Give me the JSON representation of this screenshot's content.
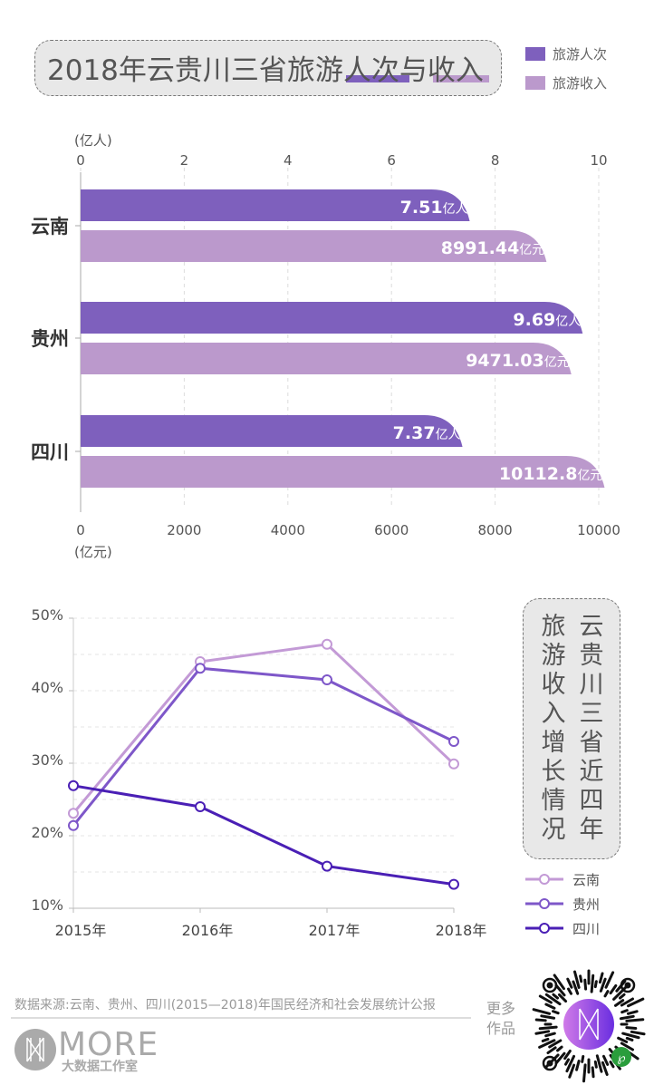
{
  "title": "2018年云贵川三省旅游人次与收入",
  "legend_top": [
    {
      "label": "旅游人次",
      "color": "#7e60bd"
    },
    {
      "label": "旅游收入",
      "color": "#bb99cc"
    }
  ],
  "chart_data": [
    {
      "type": "bar",
      "title": "2018年云贵川三省旅游人次与收入",
      "categories": [
        "云南",
        "贵州",
        "四川"
      ],
      "top_axis": {
        "unit": "(亿人)",
        "ticks": [
          "0",
          "2",
          "4",
          "6",
          "8",
          "10"
        ],
        "range": [
          0,
          10
        ]
      },
      "bottom_axis": {
        "unit": "(亿元)",
        "ticks": [
          "0",
          "2000",
          "4000",
          "6000",
          "8000",
          "10000"
        ],
        "range": [
          0,
          10000
        ]
      },
      "series": [
        {
          "name": "旅游人次",
          "values": [
            7.51,
            9.69,
            7.37
          ],
          "labels": [
            "7.51",
            "9.69",
            "7.37"
          ],
          "unit": "亿人",
          "color": "#7e60bd",
          "axis": "top"
        },
        {
          "name": "旅游收入",
          "values": [
            8991.44,
            9471.03,
            10112.8
          ],
          "labels": [
            "8991.44",
            "9471.03",
            "10112.8"
          ],
          "unit": "亿元",
          "color": "#bb99cc",
          "axis": "bottom"
        }
      ]
    },
    {
      "type": "line",
      "title": "云贵川三省近四年旅游收入增长情况",
      "x": [
        "2015年",
        "2016年",
        "2017年",
        "2018年"
      ],
      "yticks": [
        "10%",
        "20%",
        "30%",
        "40%",
        "50%"
      ],
      "ylim": [
        10,
        50
      ],
      "series": [
        {
          "name": "云南",
          "values": [
            23.1,
            44.0,
            46.4,
            29.9
          ],
          "color": "#c39ad6"
        },
        {
          "name": "贵州",
          "values": [
            21.4,
            43.1,
            41.5,
            33.0
          ],
          "color": "#7e57c9"
        },
        {
          "name": "四川",
          "values": [
            26.9,
            24.0,
            15.8,
            13.3
          ],
          "color": "#4a1fb5"
        }
      ]
    }
  ],
  "vertical_title": {
    "col1": "云贵川三省近四年",
    "col2": "旅游收入增长情况"
  },
  "footer": {
    "source": "数据来源:云南、贵州、四川(2015—2018)年国民经济和社会发展统计公报",
    "brand": "MORE",
    "brand_sub": "大数据工作室",
    "more_works": "更多作品"
  }
}
